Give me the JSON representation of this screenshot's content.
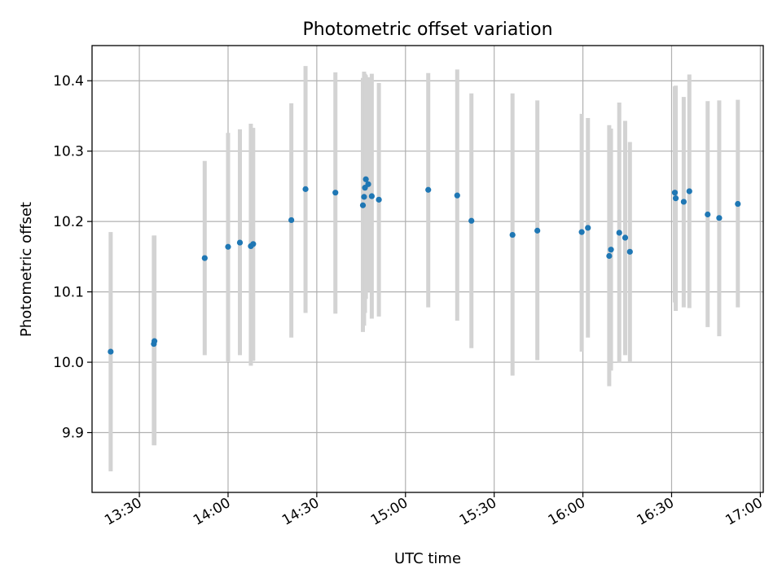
{
  "chart_data": {
    "type": "scatter",
    "title": "Photometric offset variation",
    "xlabel": "UTC time",
    "ylabel": "Photometric offset",
    "x_tick_labels": [
      "13:30",
      "14:00",
      "14:30",
      "15:00",
      "15:30",
      "16:00",
      "16:30",
      "17:00"
    ],
    "y_tick_labels": [
      "9.9",
      "10.0",
      "10.1",
      "10.2",
      "10.3",
      "10.4"
    ],
    "xlim": [
      "13:14",
      "17:01"
    ],
    "ylim": [
      9.815,
      10.45
    ],
    "grid": true,
    "marker_color": "#1f77b4",
    "errorbar_color": "#d3d3d3",
    "points": [
      {
        "t": "13:20.3",
        "y": 10.015,
        "lo": 9.845,
        "hi": 10.185
      },
      {
        "t": "13:34.9",
        "y": 10.026,
        "lo": 9.882,
        "hi": 10.18
      },
      {
        "t": "13:35.1",
        "y": 10.03,
        "lo": 9.882,
        "hi": 10.18
      },
      {
        "t": "13:52.1",
        "y": 10.148,
        "lo": 10.01,
        "hi": 10.286
      },
      {
        "t": "14:00.0",
        "y": 10.164,
        "lo": 10.0,
        "hi": 10.326
      },
      {
        "t": "14:04.0",
        "y": 10.17,
        "lo": 10.01,
        "hi": 10.331
      },
      {
        "t": "14:07.7",
        "y": 10.165,
        "lo": 9.995,
        "hi": 10.339
      },
      {
        "t": "14:08.5",
        "y": 10.168,
        "lo": 10.002,
        "hi": 10.333
      },
      {
        "t": "14:21.4",
        "y": 10.202,
        "lo": 10.035,
        "hi": 10.368
      },
      {
        "t": "14:26.2",
        "y": 10.246,
        "lo": 10.07,
        "hi": 10.421
      },
      {
        "t": "14:36.3",
        "y": 10.241,
        "lo": 10.069,
        "hi": 10.412
      },
      {
        "t": "14:45.6",
        "y": 10.223,
        "lo": 10.043,
        "hi": 10.404
      },
      {
        "t": "14:46.0",
        "y": 10.235,
        "lo": 10.052,
        "hi": 10.413
      },
      {
        "t": "14:46.3",
        "y": 10.248,
        "lo": 10.07,
        "hi": 10.41
      },
      {
        "t": "14:46.6",
        "y": 10.26,
        "lo": 10.09,
        "hi": 10.408
      },
      {
        "t": "14:47.4",
        "y": 10.253,
        "lo": 10.1,
        "hi": 10.405
      },
      {
        "t": "14:48.6",
        "y": 10.236,
        "lo": 10.062,
        "hi": 10.41
      },
      {
        "t": "14:51.0",
        "y": 10.231,
        "lo": 10.065,
        "hi": 10.397
      },
      {
        "t": "15:07.7",
        "y": 10.245,
        "lo": 10.078,
        "hi": 10.411
      },
      {
        "t": "15:17.5",
        "y": 10.237,
        "lo": 10.059,
        "hi": 10.416
      },
      {
        "t": "15:22.3",
        "y": 10.201,
        "lo": 10.02,
        "hi": 10.382
      },
      {
        "t": "15:36.2",
        "y": 10.181,
        "lo": 9.981,
        "hi": 10.382
      },
      {
        "t": "15:44.6",
        "y": 10.187,
        "lo": 10.003,
        "hi": 10.372
      },
      {
        "t": "15:59.6",
        "y": 10.185,
        "lo": 10.015,
        "hi": 10.353
      },
      {
        "t": "16:01.7",
        "y": 10.191,
        "lo": 10.035,
        "hi": 10.347
      },
      {
        "t": "16:08.9",
        "y": 10.151,
        "lo": 9.966,
        "hi": 10.337
      },
      {
        "t": "16:09.5",
        "y": 10.16,
        "lo": 9.988,
        "hi": 10.332
      },
      {
        "t": "16:12.3",
        "y": 10.184,
        "lo": 9.999,
        "hi": 10.369
      },
      {
        "t": "16:14.3",
        "y": 10.177,
        "lo": 10.01,
        "hi": 10.343
      },
      {
        "t": "16:15.9",
        "y": 10.157,
        "lo": 10.0,
        "hi": 10.313
      },
      {
        "t": "16:31.1",
        "y": 10.241,
        "lo": 10.085,
        "hi": 10.392
      },
      {
        "t": "16:31.4",
        "y": 10.233,
        "lo": 10.073,
        "hi": 10.393
      },
      {
        "t": "16:34.1",
        "y": 10.228,
        "lo": 10.078,
        "hi": 10.377
      },
      {
        "t": "16:36.0",
        "y": 10.243,
        "lo": 10.077,
        "hi": 10.409
      },
      {
        "t": "16:42.2",
        "y": 10.21,
        "lo": 10.05,
        "hi": 10.371
      },
      {
        "t": "16:46.1",
        "y": 10.205,
        "lo": 10.037,
        "hi": 10.372
      },
      {
        "t": "16:52.4",
        "y": 10.225,
        "lo": 10.078,
        "hi": 10.373
      }
    ]
  }
}
